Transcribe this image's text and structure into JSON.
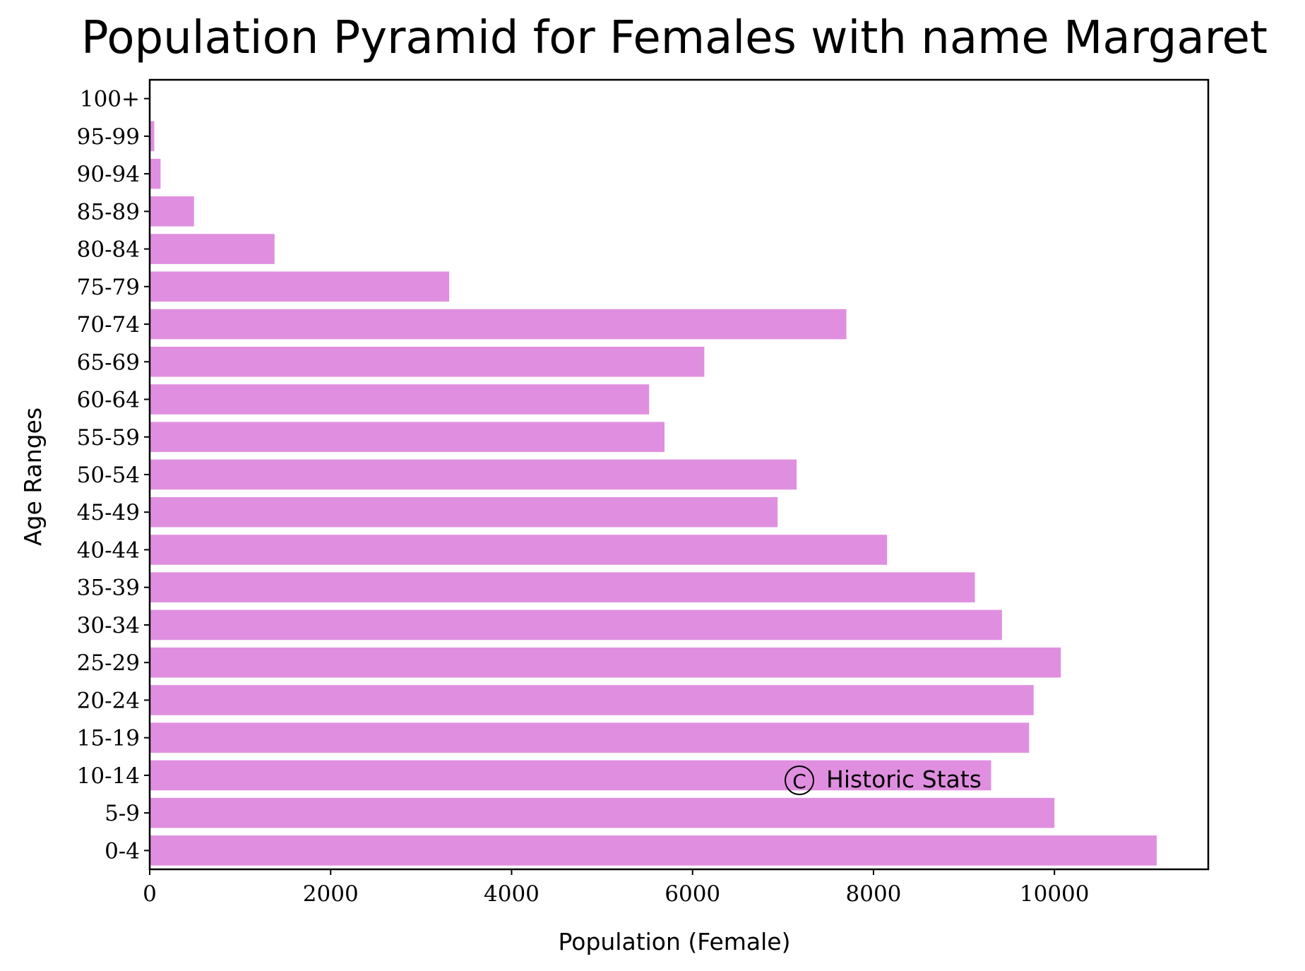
{
  "chart_data": {
    "type": "bar",
    "orientation": "horizontal",
    "title": "Population Pyramid for Females with name Margaret",
    "xlabel": "Population (Female)",
    "ylabel": "Age Ranges",
    "categories": [
      "0-4",
      "5-9",
      "10-14",
      "15-19",
      "20-24",
      "25-29",
      "30-34",
      "35-39",
      "40-44",
      "45-49",
      "50-54",
      "55-59",
      "60-64",
      "65-69",
      "70-74",
      "75-79",
      "80-84",
      "85-89",
      "90-94",
      "95-99",
      "100+"
    ],
    "values": [
      11130,
      10000,
      9300,
      9720,
      9770,
      10070,
      9420,
      9120,
      8150,
      6940,
      7150,
      5690,
      5520,
      6130,
      7700,
      3310,
      1380,
      490,
      120,
      50,
      0
    ],
    "xlim": [
      0,
      11700
    ],
    "xticks": [
      0,
      2000,
      4000,
      6000,
      8000,
      10000
    ],
    "xtick_labels": [
      "0",
      "2000",
      "4000",
      "6000",
      "8000",
      "10000"
    ],
    "bar_color": "#e08fe0",
    "grid": false,
    "watermark": "Historic Stats",
    "watermark_symbol": "C"
  }
}
